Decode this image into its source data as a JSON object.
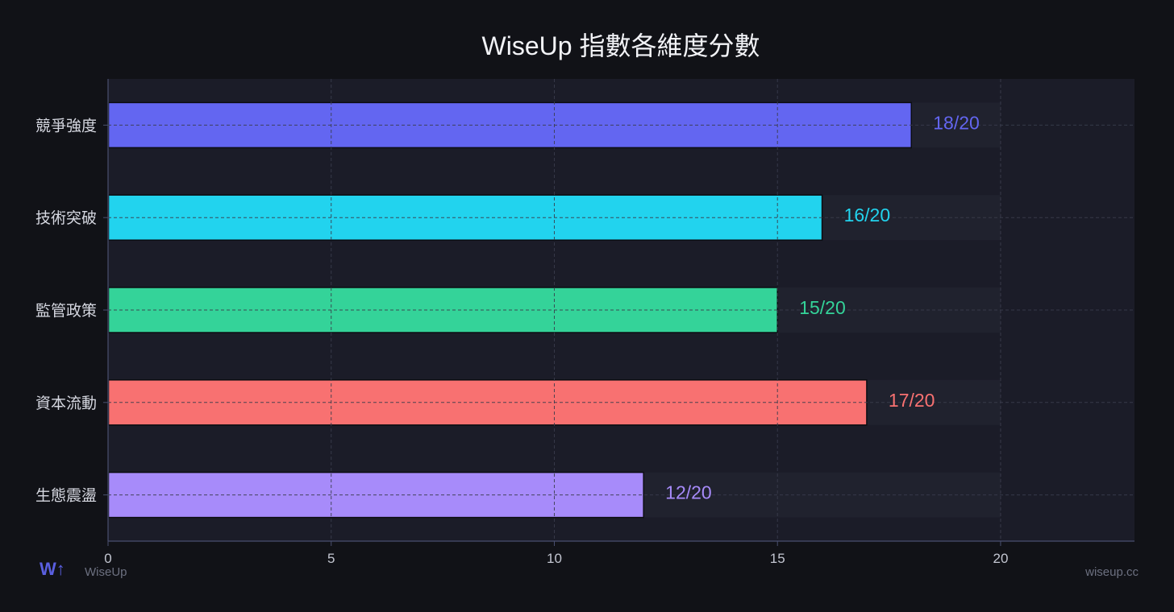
{
  "chart_data": {
    "type": "bar",
    "orientation": "horizontal",
    "title": "WiseUp 指數各維度分數",
    "categories": [
      "競爭強度",
      "技術突破",
      "監管政策",
      "資本流動",
      "生態震盪"
    ],
    "values": [
      18,
      16,
      15,
      17,
      12
    ],
    "max_score": 20,
    "value_labels": [
      "18/20",
      "16/20",
      "15/20",
      "17/20",
      "12/20"
    ],
    "colors": [
      "#6366f1",
      "#22d3ee",
      "#34d399",
      "#f87171",
      "#a78bfa"
    ],
    "xlim": [
      0,
      23
    ],
    "xticks": [
      "0",
      "5",
      "10",
      "15",
      "20"
    ],
    "xlabel": "",
    "ylabel": "",
    "grid": true,
    "legend": "none"
  },
  "branding": {
    "logo_text": "W↑",
    "name": "WiseUp",
    "url": "wiseup.cc"
  },
  "theme": {
    "page_bg": "#111217",
    "plot_bg": "#1b1c28",
    "track_bg": "#20222e",
    "grid_color": "#3a3d4d",
    "axis_color": "#4a5070"
  }
}
